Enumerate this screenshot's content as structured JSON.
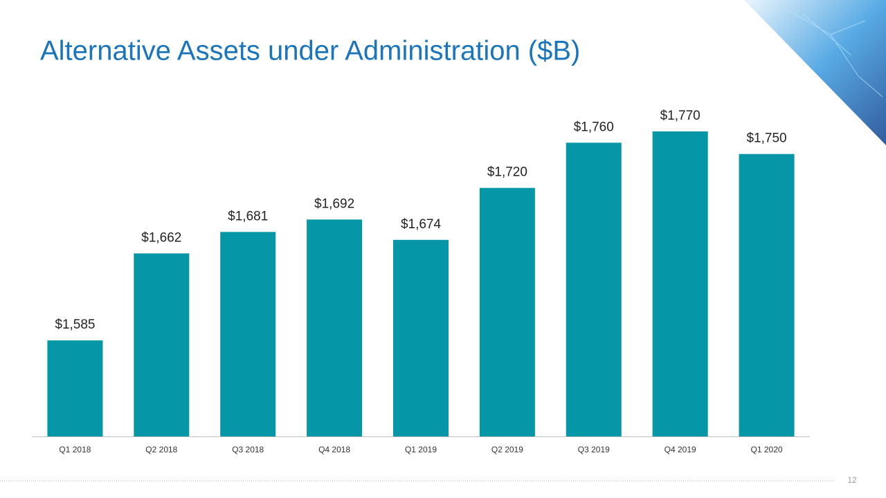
{
  "chart_data": {
    "type": "bar",
    "title": "Alternative Assets under Administration ($B)",
    "categories": [
      "Q1 2018",
      "Q2 2018",
      "Q3 2018",
      "Q4 2018",
      "Q1 2019",
      "Q2 2019",
      "Q3 2019",
      "Q4 2019",
      "Q1 2020"
    ],
    "values": [
      1585,
      1662,
      1681,
      1692,
      1674,
      1720,
      1760,
      1770,
      1750
    ],
    "value_labels": [
      "$1,585",
      "$1,662",
      "$1,681",
      "$1,692",
      "$1,674",
      "$1,720",
      "$1,760",
      "$1,770",
      "$1,750"
    ],
    "color": "#0597a7",
    "ylim": [
      1500,
      1800
    ]
  },
  "page_number": "12"
}
